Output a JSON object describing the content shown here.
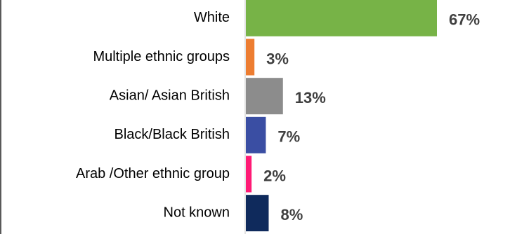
{
  "chart_data": {
    "type": "bar",
    "orientation": "horizontal",
    "categories": [
      "White",
      "Multiple ethnic groups",
      "Asian/ Asian British",
      "Black/Black British",
      "Arab /Other ethnic group",
      "Not known"
    ],
    "values": [
      67,
      3,
      13,
      7,
      2,
      8
    ],
    "value_labels": [
      "67%",
      "3%",
      "13%",
      "7%",
      "2%",
      "8%"
    ],
    "unit": "%",
    "colors": [
      "#77b347",
      "#ed7d31",
      "#8c8c8c",
      "#3a4ea3",
      "#ff1a75",
      "#0f2a5c"
    ],
    "xlim": [
      0,
      67
    ],
    "grid": false,
    "legend": "none"
  }
}
